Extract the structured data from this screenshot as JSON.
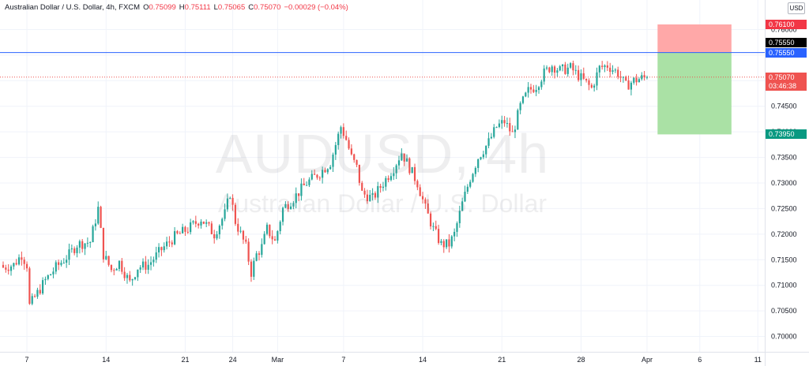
{
  "header": {
    "symbol": "Australian Dollar / U.S. Dollar, 4h, FXCM",
    "open_label": "O",
    "open": "0.75099",
    "high_label": "H",
    "high": "0.75111",
    "low_label": "L",
    "low": "0.75065",
    "close_label": "C",
    "close": "0.75070",
    "change": "−0.00029 (−0.04%)"
  },
  "currency_badge": "USD",
  "watermark": {
    "main": "AUDUSD, 4h",
    "sub": "Australian Dollar / U.S. Dollar"
  },
  "price_tags": {
    "stop": "0.76100",
    "black_line": "0.75550",
    "blue_line": "0.75550",
    "last": "0.75070",
    "countdown": "03:46:38",
    "target": "0.73950"
  },
  "colors": {
    "up": "#26a69a",
    "down": "#ef5350",
    "stop_zone": "#ffa3a3",
    "target_zone": "#a5dfa0",
    "blue_line": "#2962ff",
    "last_price": "#ef5350",
    "target_tag": "#089981",
    "stop_tag": "#f23645"
  },
  "chart_data": {
    "type": "candlestick",
    "symbol": "AUDUSD",
    "timeframe": "4h",
    "y_axis_ticks": [
      0.7,
      0.705,
      0.71,
      0.715,
      0.72,
      0.725,
      0.73,
      0.735,
      0.74,
      0.745,
      0.75,
      0.755,
      0.76
    ],
    "ylim": [
      0.697,
      0.763
    ],
    "x_axis_ticks": [
      {
        "label": "7",
        "bar": 9
      },
      {
        "label": "14",
        "bar": 39
      },
      {
        "label": "21",
        "bar": 69
      },
      {
        "label": "24",
        "bar": 87
      },
      {
        "label": "Mar",
        "bar": 104
      },
      {
        "label": "7",
        "bar": 129
      },
      {
        "label": "14",
        "bar": 159
      },
      {
        "label": "21",
        "bar": 189
      },
      {
        "label": "28",
        "bar": 219
      },
      {
        "label": "Apr",
        "bar": 244
      },
      {
        "label": "6",
        "bar": 264
      },
      {
        "label": "11",
        "bar": 286
      }
    ],
    "bar_count_span": [
      0,
      290
    ],
    "close_path": [
      [
        0,
        0.7135
      ],
      [
        4,
        0.714
      ],
      [
        7,
        0.716
      ],
      [
        9,
        0.714
      ],
      [
        10,
        0.706
      ],
      [
        13,
        0.7085
      ],
      [
        16,
        0.711
      ],
      [
        20,
        0.7135
      ],
      [
        25,
        0.716
      ],
      [
        28,
        0.718
      ],
      [
        33,
        0.7185
      ],
      [
        36,
        0.725
      ],
      [
        38,
        0.716
      ],
      [
        41,
        0.713
      ],
      [
        44,
        0.7145
      ],
      [
        48,
        0.7105
      ],
      [
        51,
        0.7135
      ],
      [
        55,
        0.714
      ],
      [
        60,
        0.717
      ],
      [
        65,
        0.7195
      ],
      [
        70,
        0.721
      ],
      [
        75,
        0.723
      ],
      [
        80,
        0.72
      ],
      [
        84,
        0.724
      ],
      [
        86,
        0.728
      ],
      [
        88,
        0.7225
      ],
      [
        92,
        0.7175
      ],
      [
        94,
        0.7125
      ],
      [
        96,
        0.716
      ],
      [
        98,
        0.7175
      ],
      [
        100,
        0.721
      ],
      [
        103,
        0.7185
      ],
      [
        106,
        0.725
      ],
      [
        110,
        0.727
      ],
      [
        115,
        0.73
      ],
      [
        120,
        0.732
      ],
      [
        124,
        0.734
      ],
      [
        128,
        0.741
      ],
      [
        130,
        0.7385
      ],
      [
        132,
        0.735
      ],
      [
        134,
        0.733
      ],
      [
        136,
        0.728
      ],
      [
        140,
        0.727
      ],
      [
        144,
        0.73
      ],
      [
        148,
        0.733
      ],
      [
        151,
        0.736
      ],
      [
        154,
        0.733
      ],
      [
        157,
        0.73
      ],
      [
        160,
        0.725
      ],
      [
        163,
        0.721
      ],
      [
        166,
        0.718
      ],
      [
        169,
        0.718
      ],
      [
        171,
        0.72
      ],
      [
        174,
        0.726
      ],
      [
        177,
        0.731
      ],
      [
        180,
        0.735
      ],
      [
        184,
        0.738
      ],
      [
        187,
        0.741
      ],
      [
        190,
        0.742
      ],
      [
        193,
        0.7395
      ],
      [
        196,
        0.745
      ],
      [
        199,
        0.748
      ],
      [
        202,
        0.749
      ],
      [
        205,
        0.7515
      ],
      [
        208,
        0.753
      ],
      [
        211,
        0.752
      ],
      [
        215,
        0.7525
      ],
      [
        219,
        0.7505
      ],
      [
        223,
        0.7485
      ],
      [
        226,
        0.7525
      ],
      [
        229,
        0.753
      ],
      [
        233,
        0.7515
      ],
      [
        236,
        0.749
      ],
      [
        239,
        0.75
      ],
      [
        242,
        0.7505
      ],
      [
        244,
        0.7507
      ]
    ],
    "horizontal_lines": [
      {
        "price": 0.7555,
        "color": "#2962ff",
        "style": "solid"
      },
      {
        "price": 0.7507,
        "color": "#ef5350",
        "style": "dotted"
      }
    ],
    "short_position": {
      "entry": 0.7555,
      "stop": 0.761,
      "target": 0.7395,
      "start_bar": 248,
      "end_bar": 276
    }
  }
}
